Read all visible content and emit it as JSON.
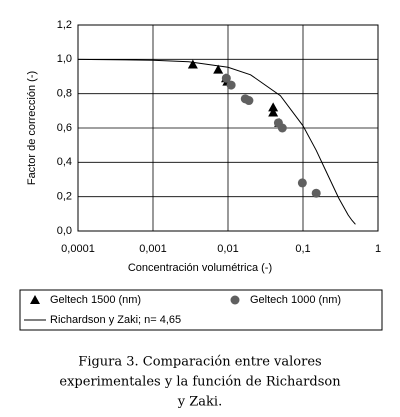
{
  "chart_data": {
    "type": "scatter",
    "x_label": "Concentración volumétrica (-)",
    "y_label": "Factor de corrección (-)",
    "log_x": true,
    "grid": true,
    "xlim": [
      0.0001,
      1
    ],
    "xticks": [
      {
        "value": 0.0001,
        "label": "0,0001"
      },
      {
        "value": 0.001,
        "label": "0,001"
      },
      {
        "value": 0.01,
        "label": "0,01"
      },
      {
        "value": 0.1,
        "label": "0,1"
      },
      1
    ],
    "ylim": [
      0,
      1.2
    ],
    "yticks": [
      {
        "value": 0,
        "label": "0,0"
      },
      {
        "value": 0.2,
        "label": "0,2"
      },
      {
        "value": 0.4,
        "label": "0,4"
      },
      {
        "value": 0.6,
        "label": "0,6"
      },
      {
        "value": 0.8,
        "label": "0,8"
      },
      {
        "value": 1,
        "label": "1,0"
      },
      {
        "value": 1.2,
        "label": "1,2"
      }
    ],
    "series": [
      {
        "name": "Geltech 1500 (nm)",
        "marker": "triangle",
        "color": "#000000",
        "x": [
          0.0034,
          0.0074,
          0.0094,
          0.0098,
          0.04,
          0.04,
          0.048
        ],
        "values": [
          0.97,
          0.94,
          0.89,
          0.87,
          0.72,
          0.69,
          0.63
        ]
      },
      {
        "name": "Geltech 1000 (nm)",
        "marker": "circle",
        "color": "#606060",
        "x": [
          0.0095,
          0.011,
          0.017,
          0.019,
          0.047,
          0.053,
          0.098,
          0.15
        ],
        "values": [
          0.89,
          0.85,
          0.77,
          0.76,
          0.63,
          0.6,
          0.28,
          0.22
        ]
      },
      {
        "name": "Richardson y Zaki; n= 4,65",
        "marker": "line",
        "color": "#000000",
        "x": [
          0.0001,
          0.001,
          0.003,
          0.01,
          0.02,
          0.05,
          0.1,
          0.15,
          0.2,
          0.3,
          0.4,
          0.45,
          0.5
        ],
        "values": [
          0.9995,
          0.995,
          0.986,
          0.954,
          0.91,
          0.788,
          0.613,
          0.47,
          0.354,
          0.191,
          0.093,
          0.062,
          0.039
        ]
      }
    ]
  },
  "caption": [
    "Figura 3. Comparación entre valores",
    "experimentales y la función de Richardson",
    "y Zaki."
  ]
}
